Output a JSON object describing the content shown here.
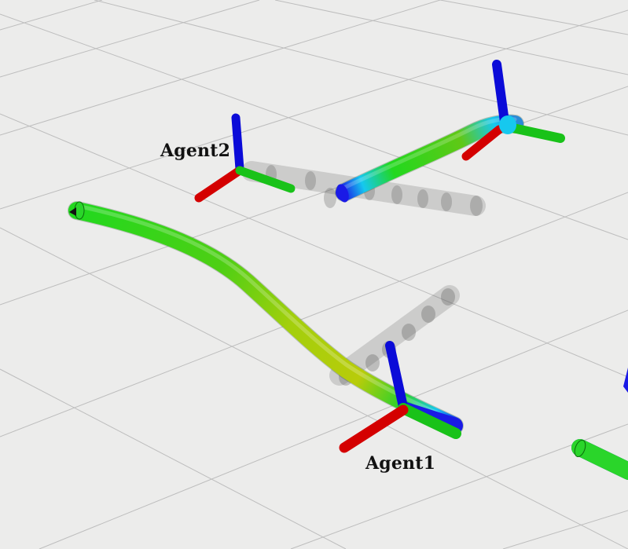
{
  "viewer": {
    "background_color": "#ececeb",
    "grid_color": "#bdbdbd",
    "trail_color": "#5a5a5a",
    "axis_colors": {
      "x": "#d40000",
      "y": "#19c219",
      "z": "#0b0bd8"
    },
    "path_gradient": [
      "#1a1ae6",
      "#16c8ef",
      "#22d81e",
      "#cdd40a"
    ]
  },
  "agents": [
    {
      "id": "agent1",
      "label": "Agent1"
    },
    {
      "id": "agent2",
      "label": "Agent2"
    }
  ]
}
